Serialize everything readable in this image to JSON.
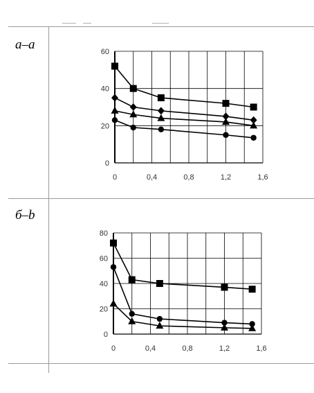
{
  "panels": [
    {
      "label": "a–a",
      "chart_data": {
        "type": "line",
        "title": "",
        "xlabel": "",
        "ylabel": "",
        "xlim": [
          0,
          1.6
        ],
        "ylim": [
          0,
          60
        ],
        "xticks": [
          0,
          0.4,
          0.8,
          1.2,
          1.6
        ],
        "xtick_labels": [
          "0",
          "0,4",
          "0,8",
          "1,2",
          "1,6"
        ],
        "yticks": [
          0,
          20,
          40,
          60
        ],
        "ytick_labels": [
          "0",
          "20",
          "40",
          "60"
        ],
        "grid": true,
        "x": [
          0,
          0.2,
          0.5,
          1.2,
          1.5
        ],
        "series": [
          {
            "marker": "square",
            "values": [
              52,
              40,
              35,
              32,
              30
            ]
          },
          {
            "marker": "diamond",
            "values": [
              35,
              30,
              28,
              25,
              23
            ]
          },
          {
            "marker": "triangle",
            "values": [
              28,
              26,
              24,
              22,
              20
            ]
          },
          {
            "marker": "circle",
            "values": [
              23,
              19,
              18,
              15,
              13.5
            ]
          }
        ]
      }
    },
    {
      "label": "б–b",
      "chart_data": {
        "type": "line",
        "title": "",
        "xlabel": "",
        "ylabel": "",
        "xlim": [
          0,
          1.6
        ],
        "ylim": [
          0,
          80
        ],
        "xticks": [
          0,
          0.4,
          0.8,
          1.2,
          1.6
        ],
        "xtick_labels": [
          "0",
          "0,4",
          "0,8",
          "1,2",
          "1,6"
        ],
        "yticks": [
          0,
          20,
          40,
          60,
          80
        ],
        "ytick_labels": [
          "0",
          "20",
          "40",
          "60",
          "80"
        ],
        "grid": true,
        "x": [
          0,
          0.2,
          0.5,
          1.2,
          1.5
        ],
        "series": [
          {
            "marker": "square",
            "values": [
              72,
              43,
              40,
              37,
              35.5
            ]
          },
          {
            "marker": "circle",
            "values": [
              53,
              16,
              12,
              9,
              8
            ]
          },
          {
            "marker": "triangle",
            "values": [
              24,
              10,
              6.5,
              5,
              4.5
            ]
          }
        ]
      }
    }
  ]
}
